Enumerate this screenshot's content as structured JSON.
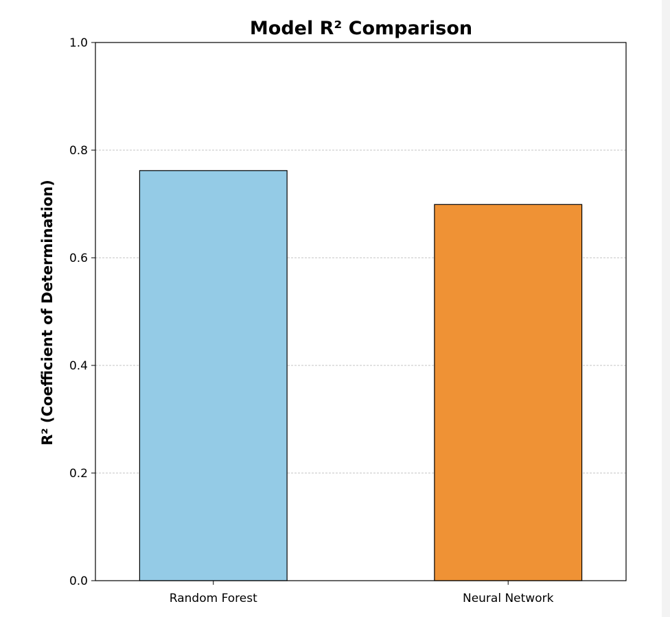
{
  "chart_data": {
    "type": "bar",
    "title": "Model R² Comparison",
    "xlabel": "",
    "ylabel": "R² (Coefficient of Determination)",
    "categories": [
      "Random Forest",
      "Neural Network"
    ],
    "values": [
      0.762,
      0.699
    ],
    "bar_colors": [
      "#94cbe6",
      "#ef9235"
    ],
    "edge_color": "#000000",
    "ylim": [
      0.0,
      1.0
    ],
    "yticks": [
      "0.0",
      "0.2",
      "0.4",
      "0.6",
      "0.8",
      "1.0"
    ],
    "grid": {
      "y": true,
      "x": false,
      "style": "dashed",
      "color": "#b0b0b0"
    }
  }
}
